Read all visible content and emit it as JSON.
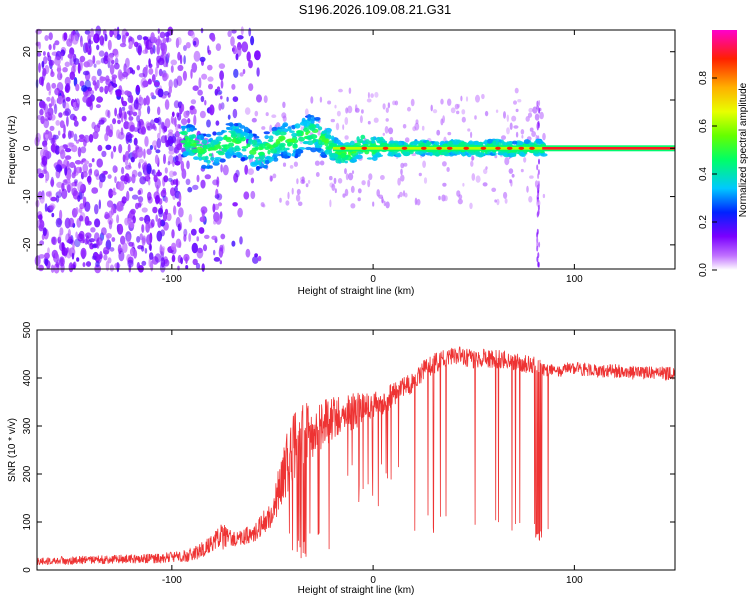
{
  "figure_title": "S196.2026.109.08.21.G31",
  "chart_data": [
    {
      "type": "heatmap",
      "title": "S196.2026.109.08.21.G31",
      "xlabel": "Height of straight line (km)",
      "ylabel": "Frequency (Hz)",
      "xlim": [
        -167,
        150
      ],
      "ylim": [
        -25,
        24.5
      ],
      "x_ticks": [
        -100,
        0,
        100
      ],
      "x_tick_labels": [
        "-100",
        "0",
        "100"
      ],
      "y_ticks": [
        -20,
        -10,
        0,
        10,
        20
      ],
      "y_tick_labels": [
        "-20",
        "-10",
        "0",
        "10",
        "20"
      ],
      "colorbar": {
        "label": "Normalized spectral amplitude",
        "range": [
          0,
          1
        ],
        "ticks": [
          0.0,
          0.2,
          0.4,
          0.6,
          0.8
        ],
        "tick_labels": [
          "0.0",
          "0.2",
          "0.4",
          "0.6",
          "0.8"
        ],
        "colormap": [
          "#ffffff",
          "#8c00ff",
          "#0033ff",
          "#00e5ff",
          "#00ff33",
          "#e6ff00",
          "#ffb000",
          "#ff2200",
          "#ff00c8"
        ]
      },
      "features": [
        {
          "name": "noise_region",
          "x_range": [
            -167,
            -55
          ],
          "freq_range": [
            -25,
            24.5
          ],
          "amplitude": 0.1
        },
        {
          "name": "ridge_onset",
          "x_range": [
            -95,
            -20
          ],
          "freq_center": 0.8,
          "freq_spread": 4,
          "amplitude": 0.35
        },
        {
          "name": "carrier_line",
          "x_range": [
            -20,
            150
          ],
          "freq": 0.0,
          "amplitude": 1.0
        },
        {
          "name": "spike",
          "x": 82,
          "freq_range": [
            -25,
            10
          ]
        }
      ]
    },
    {
      "type": "line",
      "xlabel": "Height of straight line (km)",
      "ylabel": "SNR (10 * v/v)",
      "xlim": [
        -167,
        150
      ],
      "ylim": [
        0,
        500
      ],
      "x_ticks": [
        -100,
        0,
        100
      ],
      "x_tick_labels": [
        "-100",
        "0",
        "100"
      ],
      "y_ticks": [
        0,
        100,
        200,
        300,
        400,
        500
      ],
      "y_tick_labels": [
        "0",
        "100",
        "200",
        "300",
        "400",
        "500"
      ],
      "color": "#ee3333",
      "series": [
        {
          "name": "SNR",
          "x": [
            -167,
            -150,
            -130,
            -110,
            -100,
            -90,
            -80,
            -75,
            -70,
            -60,
            -50,
            -45,
            -40,
            -35,
            -30,
            -25,
            -20,
            -15,
            -10,
            -5,
            0,
            5,
            10,
            15,
            20,
            25,
            30,
            35,
            40,
            45,
            50,
            55,
            60,
            65,
            70,
            75,
            80,
            85,
            90,
            100,
            110,
            120,
            130,
            140,
            150
          ],
          "base": [
            18,
            20,
            22,
            24,
            26,
            32,
            55,
            70,
            62,
            75,
            120,
            195,
            255,
            275,
            295,
            305,
            315,
            325,
            330,
            335,
            340,
            350,
            365,
            380,
            395,
            415,
            430,
            440,
            445,
            445,
            440,
            440,
            440,
            440,
            435,
            430,
            425,
            420,
            415,
            420,
            415,
            415,
            410,
            410,
            410
          ],
          "jitter": [
            8,
            9,
            9,
            10,
            12,
            14,
            22,
            28,
            18,
            20,
            30,
            60,
            75,
            70,
            60,
            55,
            45,
            40,
            38,
            35,
            30,
            28,
            26,
            24,
            24,
            22,
            22,
            20,
            20,
            20,
            20,
            20,
            20,
            20,
            20,
            20,
            20,
            16,
            14,
            14,
            14,
            14,
            14,
            14,
            14
          ]
        }
      ],
      "dropouts": {
        "x_range": [
          20,
          87
        ],
        "min_value": 70
      },
      "annotation_values": [
        500,
        80
      ]
    }
  ]
}
